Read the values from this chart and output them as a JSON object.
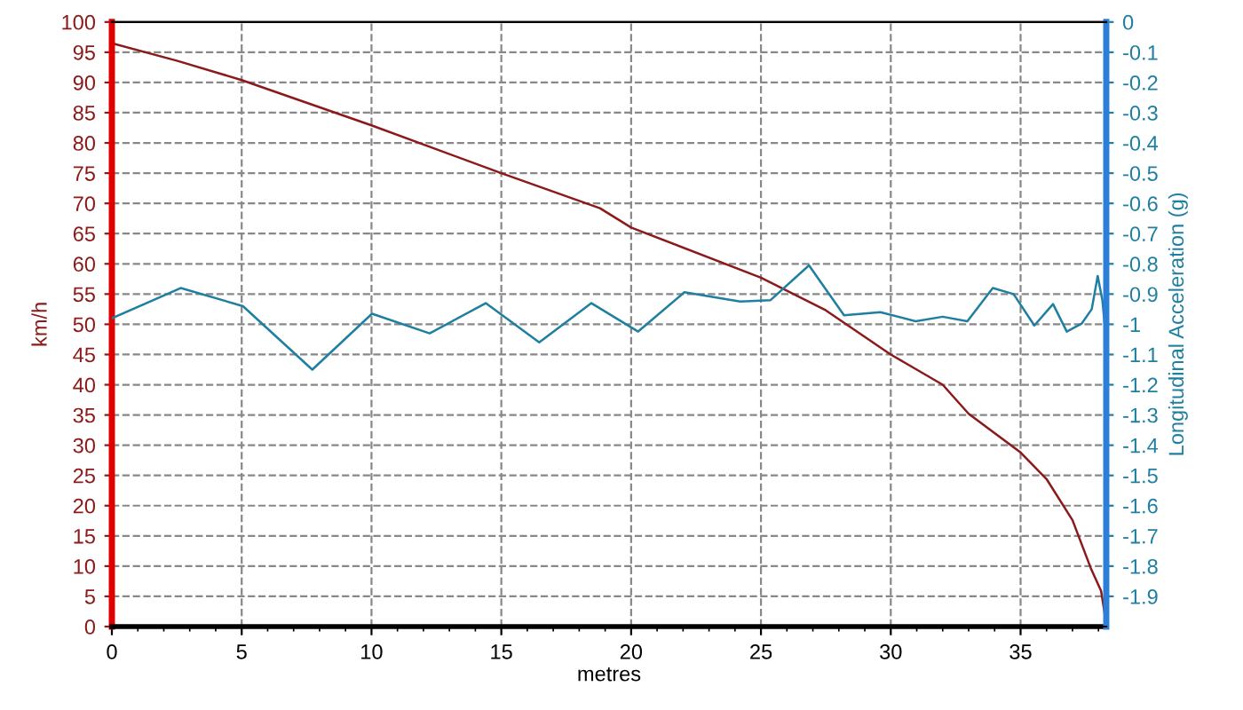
{
  "chart_data": {
    "type": "line",
    "xlabel": "metres",
    "ylabel": "km/h",
    "y2label": "Longitudinal Acceleration (g)",
    "xlim": [
      0,
      38.3
    ],
    "xticks": [
      0,
      5,
      10,
      15,
      20,
      25,
      30,
      35
    ],
    "ylim": [
      0,
      100
    ],
    "yticks": [
      0,
      5,
      10,
      15,
      20,
      25,
      30,
      35,
      40,
      45,
      50,
      55,
      60,
      65,
      70,
      75,
      80,
      85,
      90,
      95,
      100
    ],
    "y2lim": [
      -2,
      0
    ],
    "y2ticks": [
      -1.9,
      -1.8,
      -1.7,
      -1.6,
      -1.5,
      -1.4,
      -1.3,
      -1.2,
      -1.1,
      -1,
      -0.9,
      -0.8,
      -0.7,
      -0.6,
      -0.5,
      -0.4,
      -0.3,
      -0.2,
      -0.1,
      0
    ],
    "grid": true,
    "line_style": "solid",
    "marker": "none",
    "legend": false,
    "series": [
      {
        "color": "#8b1a1a",
        "x": [
          0,
          2.5,
          5,
          10,
          15,
          18.8,
          20,
          25,
          27.5,
          30,
          32,
          33,
          35,
          36,
          37,
          37.7,
          38.1,
          38.3
        ],
        "values": [
          96.5,
          93.6,
          90.4,
          82.9,
          75.0,
          69.2,
          66.0,
          57.7,
          52.3,
          45.0,
          40.0,
          35.2,
          28.8,
          24.4,
          17.6,
          9.7,
          5.9,
          0.5
        ]
      },
      {
        "color": "#1e7fa0",
        "axis": "y2",
        "x": [
          0,
          2.65,
          5.05,
          7.72,
          10.02,
          12.24,
          14.4,
          16.46,
          18.47,
          20.27,
          22.05,
          24.2,
          25.37,
          26.85,
          28.2,
          29.6,
          30.96,
          32.0,
          32.95,
          33.93,
          34.73,
          35.53,
          36.25,
          36.78,
          37.35,
          37.74,
          37.97,
          38.15,
          38.26
        ],
        "values": [
          -0.98,
          -0.88,
          -0.94,
          -1.15,
          -0.965,
          -1.03,
          -0.93,
          -1.06,
          -0.93,
          -1.024,
          -0.894,
          -0.925,
          -0.92,
          -0.805,
          -0.97,
          -0.96,
          -0.99,
          -0.975,
          -0.99,
          -0.88,
          -0.9,
          -1.004,
          -0.933,
          -1.024,
          -0.998,
          -0.95,
          -0.84,
          -0.92,
          -1.02
        ]
      }
    ]
  }
}
